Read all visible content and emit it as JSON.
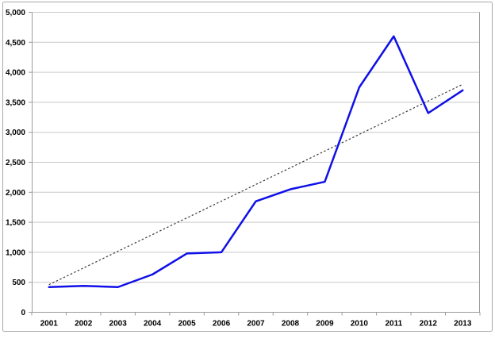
{
  "chart_data": {
    "type": "line",
    "title": "",
    "xlabel": "",
    "ylabel": "",
    "categories": [
      "2001",
      "2002",
      "2003",
      "2004",
      "2005",
      "2006",
      "2007",
      "2008",
      "2009",
      "2010",
      "2011",
      "2012",
      "2013"
    ],
    "series": [
      {
        "name": "value-series",
        "color": "#1010e8",
        "values": [
          420,
          440,
          420,
          630,
          980,
          1000,
          1850,
          2050,
          2175,
          3750,
          4600,
          3320,
          3700
        ]
      }
    ],
    "trendline": {
      "name": "dotted-trendline",
      "style": "dotted",
      "color": "#3a3a3a",
      "start_value": 460,
      "end_value": 3800
    },
    "ylim": [
      0,
      5000
    ],
    "ytick_step": 500,
    "ytick_labels": [
      "0",
      "500",
      "1,000",
      "1,500",
      "2,000",
      "2,500",
      "3,000",
      "3,500",
      "4,000",
      "4,500",
      "5,000"
    ],
    "grid": "horizontal",
    "legend_position": "none",
    "colors": {
      "frame_border": "#a9a9a9",
      "gridline": "#c9c9c9",
      "axis": "#9b9b9b",
      "background": "#ffffff",
      "tick_text": "#000000"
    }
  }
}
